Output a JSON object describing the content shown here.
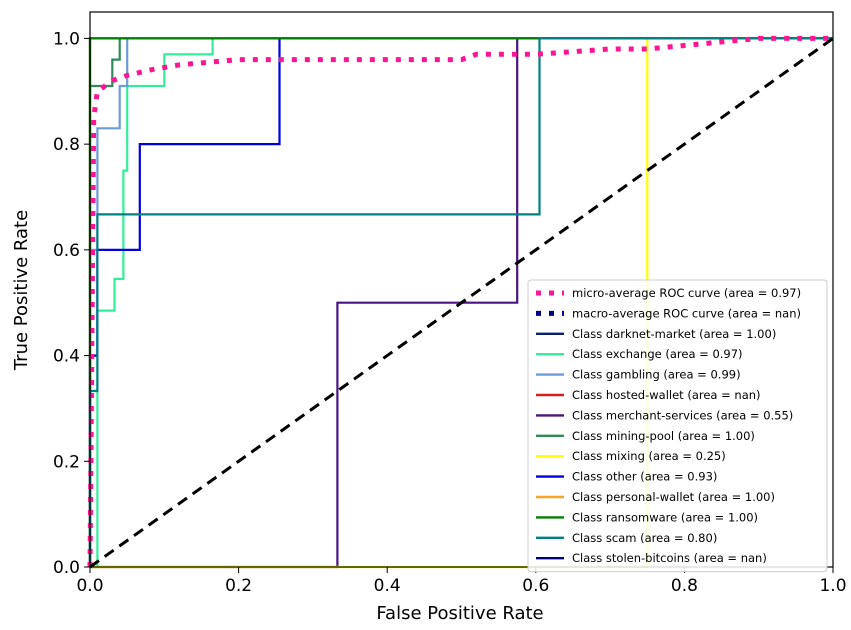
{
  "chart_data": {
    "type": "line",
    "title": "",
    "xlabel": "False Positive Rate",
    "ylabel": "True Positive Rate",
    "xlim": [
      0.0,
      1.0
    ],
    "ylim": [
      0.0,
      1.05
    ],
    "xticks": [
      "0.0",
      "0.2",
      "0.4",
      "0.6",
      "0.8",
      "1.0"
    ],
    "yticks": [
      "0.0",
      "0.2",
      "0.4",
      "0.6",
      "0.8",
      "1.0"
    ],
    "legend_position": "lower-right",
    "grid": false,
    "series": [
      {
        "name": "micro-average ROC curve (area = 0.97)",
        "color": "#ff1493",
        "style": "dotted",
        "x": [
          0,
          0.005,
          0.01,
          0.02,
          0.03,
          0.05,
          0.08,
          0.12,
          0.2,
          0.3,
          0.5,
          0.52,
          0.6,
          0.7,
          0.75,
          0.9,
          1.0
        ],
        "y": [
          0,
          0.85,
          0.9,
          0.91,
          0.92,
          0.93,
          0.94,
          0.95,
          0.96,
          0.96,
          0.96,
          0.97,
          0.97,
          0.98,
          0.98,
          1.0,
          1.0
        ]
      },
      {
        "name": "macro-average ROC curve (area = nan)",
        "color": "#000080",
        "style": "dotted",
        "x": [],
        "y": []
      },
      {
        "name": "Class darknet-market (area = 1.00)",
        "color": "#0a1e6e",
        "style": "solid",
        "x": [
          0,
          0,
          1.0
        ],
        "y": [
          0,
          1.0,
          1.0
        ]
      },
      {
        "name": "Class exchange (area = 0.97)",
        "color": "#33ee99",
        "style": "solid",
        "x": [
          0,
          0.01,
          0.01,
          0.033,
          0.033,
          0.045,
          0.045,
          0.05,
          0.05,
          0.1,
          0.1,
          0.165,
          0.165,
          1.0
        ],
        "y": [
          0,
          0,
          0.485,
          0.485,
          0.545,
          0.545,
          0.75,
          0.75,
          0.91,
          0.91,
          0.97,
          0.97,
          1.0,
          1.0
        ]
      },
      {
        "name": "Class gambling (area = 0.99)",
        "color": "#6c9bdc",
        "style": "solid",
        "x": [
          0,
          0,
          0.01,
          0.01,
          0.04,
          0.04,
          0.05,
          0.05,
          1.0
        ],
        "y": [
          0,
          0.6,
          0.6,
          0.83,
          0.83,
          0.91,
          0.91,
          1.0,
          1.0
        ]
      },
      {
        "name": "Class hosted-wallet (area = nan)",
        "color": "#d62020",
        "style": "solid",
        "x": [],
        "y": []
      },
      {
        "name": "Class merchant-services (area = 0.55)",
        "color": "#4b1382",
        "style": "solid",
        "x": [
          0,
          0.333,
          0.333,
          0.575,
          0.575,
          1.0
        ],
        "y": [
          0,
          0,
          0.5,
          0.5,
          1.0,
          1.0
        ]
      },
      {
        "name": "Class mining-pool (area = 1.00)",
        "color": "#2e8b57",
        "style": "solid",
        "x": [
          0,
          0,
          0.03,
          0.03,
          0.04,
          0.04,
          1.0
        ],
        "y": [
          0,
          0.91,
          0.91,
          0.96,
          0.96,
          1.0,
          1.0
        ]
      },
      {
        "name": "Class mixing (area = 0.25)",
        "color": "#ffff00",
        "style": "solid",
        "x": [
          0,
          0.75,
          0.75,
          1.0
        ],
        "y": [
          0,
          0,
          1.0,
          1.0
        ]
      },
      {
        "name": "Class other (area = 0.93)",
        "color": "#0000dd",
        "style": "solid",
        "x": [
          0,
          0,
          0.01,
          0.01,
          0.067,
          0.067,
          0.255,
          0.255,
          1.0
        ],
        "y": [
          0,
          0.4,
          0.4,
          0.6,
          0.6,
          0.8,
          0.8,
          1.0,
          1.0
        ]
      },
      {
        "name": "Class personal-wallet (area = 1.00)",
        "color": "#f5a623",
        "style": "solid",
        "x": [
          0,
          0,
          1.0
        ],
        "y": [
          0,
          1.0,
          1.0
        ]
      },
      {
        "name": "Class ransomware (area = 1.00)",
        "color": "#008000",
        "style": "solid",
        "x": [
          0,
          0,
          1.0
        ],
        "y": [
          0,
          1.0,
          1.0
        ]
      },
      {
        "name": "Class scam (area = 0.80)",
        "color": "#008080",
        "style": "solid",
        "x": [
          0,
          0,
          0.01,
          0.01,
          0.605,
          0.605,
          1.0
        ],
        "y": [
          0,
          0.333,
          0.333,
          0.667,
          0.667,
          1.0,
          1.0
        ]
      },
      {
        "name": "Class stolen-bitcoins (area = nan)",
        "color": "#000080",
        "style": "solid",
        "x": [],
        "y": []
      }
    ],
    "reference_line": {
      "x": [
        0,
        1
      ],
      "y": [
        0,
        1
      ],
      "color": "#000000",
      "style": "dashed"
    }
  }
}
